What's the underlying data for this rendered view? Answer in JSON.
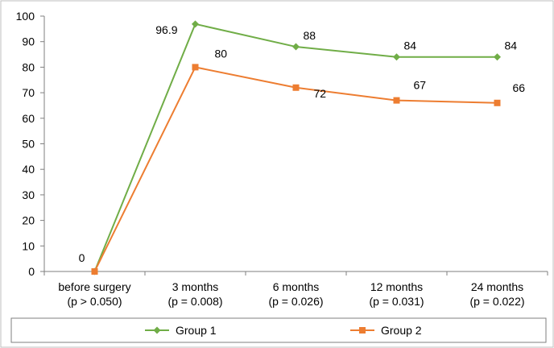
{
  "chart_data": {
    "type": "line",
    "categories": [
      [
        "before surgery",
        "(p > 0.050)"
      ],
      [
        "3 months",
        "(p = 0.008)"
      ],
      [
        "6 months",
        "(p = 0.026)"
      ],
      [
        "12 months",
        "(p = 0.031)"
      ],
      [
        "24 months",
        "(p = 0.022)"
      ]
    ],
    "series": [
      {
        "name": "Group 1",
        "values": [
          0,
          96.9,
          88,
          84,
          84
        ],
        "labels": [
          "0",
          "96.9",
          "88",
          "84",
          "84"
        ],
        "color": "#70ad47",
        "marker": "diamond"
      },
      {
        "name": "Group 2",
        "values": [
          0,
          80,
          72,
          67,
          66
        ],
        "labels": [
          "",
          "80",
          "72",
          "67",
          "66"
        ],
        "color": "#ed7d31",
        "marker": "square"
      }
    ],
    "yticks": [
      "0",
      "10",
      "20",
      "30",
      "40",
      "50",
      "60",
      "70",
      "80",
      "90",
      "100"
    ],
    "ylim": [
      0,
      100
    ],
    "grid": false,
    "legend_position": "bottom",
    "title": "",
    "xlabel": "",
    "ylabel": ""
  }
}
